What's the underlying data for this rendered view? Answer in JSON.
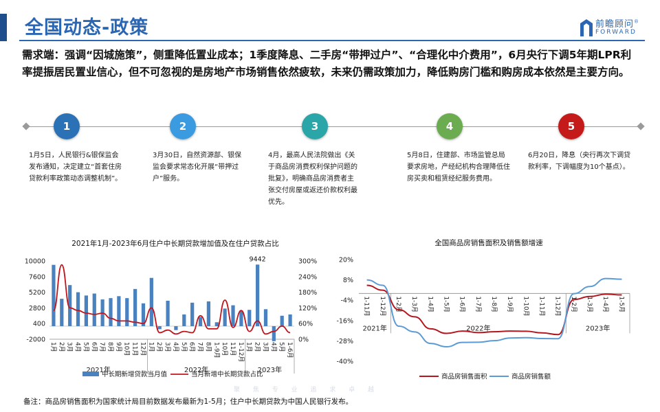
{
  "page": {
    "title": "全国动态-政策",
    "logo_cn": "前瞻顾问",
    "logo_reg": "®",
    "logo_en": "FORWARD",
    "headline": "需求端：强调“因城施策”，侧重降低置业成本；1季度降息、二手房“带押过户”、“合理化中介费用”，6月央行下调5年期LPR利率提振居民置业信心，但不可忽视的是房地产市场销售依然疲软，未来仍需政策加力，降低购房门槛和购房成本依然是主要方向。",
    "footnote": "备注：商品房销售面积为国家统计局目前数据发布最新为1-5月；住户中长期贷款为中国人民银行发布。",
    "watermark": "聚 焦 专 业 追 求 卓 越"
  },
  "timeline": [
    {
      "num": "1",
      "color": "#2a72b5",
      "text": "1月5日，人民银行&银保监会发布通知，决定建立“首套住房贷款利率政策动态调整机制”。"
    },
    {
      "num": "2",
      "color": "#3b9be0",
      "text": "3月30日，自然资源部、银保监会要求常态化开展“带押过户”服务。"
    },
    {
      "num": "3",
      "color": "#2aa6a8",
      "text": "4月，最高人民法院做出《关于商品房消费权利保护问题的批复》，明确商品房消费者主张交付房屋或返还价款权利最优先。"
    },
    {
      "num": "4",
      "color": "#6aac4f",
      "text": "5月8日，住建部、市场监管总局要求房地，产经纪机构合理降低住房买卖和租赁经纪服务费用。"
    },
    {
      "num": "5",
      "color": "#c51a1a",
      "text": "6月20日，降息（央行再次下调贷款利率，下调幅度为10个基点）。"
    }
  ],
  "chart_data": [
    {
      "type": "bar",
      "title": "2021年1月-2023年6月住户中长期贷款增加值及在住户贷款占比",
      "categories": [
        "1月",
        "2月",
        "3月",
        "4月",
        "5月",
        "6月",
        "7月",
        "8月",
        "9月",
        "10月",
        "11月",
        "12月",
        "1月",
        "2月",
        "3月",
        "4月",
        "5月",
        "6月",
        "7月",
        "8月",
        "1-9月",
        "10月",
        "11月",
        "1-12月",
        "1月",
        "2月",
        "3月",
        "4月",
        "5月",
        "1-6月"
      ],
      "year_groups": [
        {
          "label": "2021年",
          "start": 0,
          "end": 11
        },
        {
          "label": "2022年",
          "start": 12,
          "end": 23
        },
        {
          "label": "2023年",
          "start": 24,
          "end": 29
        }
      ],
      "y_ticks_left": [
        "10000",
        "7600",
        "5200",
        "2800",
        "400",
        "-2000"
      ],
      "y_ticks_right": [
        "300%",
        "240%",
        "180%",
        "120%",
        "60%",
        "0%"
      ],
      "ylim_left": [
        -2000,
        10000
      ],
      "ylim_right": [
        0,
        300
      ],
      "series": [
        {
          "name": "中长期新增贷款当月值",
          "type": "bar",
          "color": "#4a82c0",
          "values": [
            9400,
            4200,
            6300,
            5200,
            4700,
            5000,
            4100,
            4300,
            4600,
            4300,
            5700,
            3500,
            7400,
            -460,
            3900,
            -600,
            1800,
            3600,
            1400,
            3800,
            600,
            2700,
            3200,
            2400,
            2500,
            9442,
            2600,
            -2300,
            1600,
            1800
          ]
        },
        {
          "name": "当月新增中长期贷款占比",
          "type": "line",
          "color": "#c0151d",
          "values": [
            110,
            285,
            120,
            110,
            100,
            95,
            100,
            80,
            70,
            70,
            65,
            60,
            120,
            25,
            35,
            20,
            30,
            25,
            90,
            40,
            40,
            150,
            45,
            110,
            30,
            70,
            20,
            30,
            50,
            25
          ]
        }
      ],
      "annotation": "9442"
    },
    {
      "type": "line",
      "title": "全国商品房销售面积及销售额增速",
      "categories": [
        "1-11月",
        "1-12月",
        "1-2月",
        "1-3月",
        "1-4月",
        "1-5月",
        "1-6月",
        "1-7月",
        "1-8月",
        "1-9月",
        "1-10月",
        "1-11月",
        "1-12月",
        "1-2月",
        "1-3月",
        "1-4月",
        "1-5月"
      ],
      "year_groups": [
        {
          "label": "2021年",
          "start": 0,
          "end": 1
        },
        {
          "label": "2022年",
          "start": 2,
          "end": 12
        },
        {
          "label": "2023年",
          "start": 13,
          "end": 16
        }
      ],
      "y_ticks": [
        "20%",
        "8%",
        "-4%",
        "-16%",
        "-28%",
        "-40%"
      ],
      "ylim": [
        -40,
        20
      ],
      "series": [
        {
          "name": "商品房销售面积",
          "color": "#b3161d",
          "values": [
            4.8,
            1.9,
            -9.6,
            -13.8,
            -20.9,
            -23.6,
            -22.2,
            -23.1,
            -22.6,
            -22.2,
            -22.3,
            -23.3,
            -24.3,
            -3.6,
            -1.8,
            -0.4,
            -0.9
          ]
        },
        {
          "name": "商品房销售额",
          "color": "#5b9bd5",
          "values": [
            8.0,
            4.8,
            -19.3,
            -22.7,
            -29.5,
            -31.5,
            -28.9,
            -28.8,
            -27.9,
            -26.3,
            -26.1,
            -26.6,
            -26.7,
            -0.1,
            4.1,
            8.8,
            8.4
          ]
        }
      ]
    }
  ]
}
